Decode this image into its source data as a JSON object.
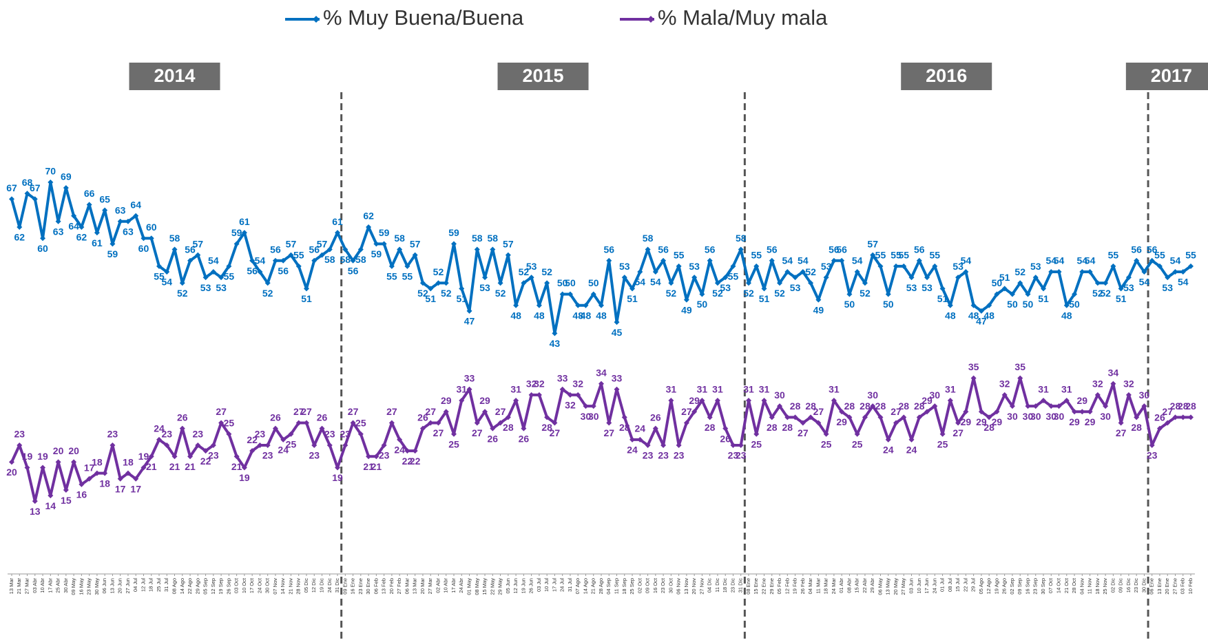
{
  "chart_data": {
    "type": "line",
    "groups": [
      {
        "name": "2014",
        "categories": [
          "13 Mar",
          "21 Mar",
          "27 Mar",
          "03 Abr",
          "10 Abr",
          "17 Abr",
          "25 Abr",
          "30 Abr",
          "09 May",
          "16 May",
          "23 May",
          "30 May",
          "06 Jun",
          "13 Jun",
          "20 Jun",
          "27 Jun",
          "04 Jul",
          "12 Jul",
          "18 Jul",
          "25 Jul",
          "31 Jul",
          "08 Ago",
          "14 Ago",
          "22 Ago",
          "29 Ago",
          "05 Sep",
          "12 Sep",
          "19 Sep",
          "26 Sep",
          "03 Oct",
          "10 Oct",
          "17 Oct",
          "24 Oct",
          "30 Oct",
          "07 Nov",
          "14 Nov",
          "21 Nov",
          "28 Nov",
          "05 Dic",
          "12 Dic",
          "19 Dic",
          "24 Dic",
          "31 Dic"
        ]
      },
      {
        "name": "2015",
        "categories": [
          "09 Ene",
          "16 Ene",
          "23 Ene",
          "30 Ene",
          "06 Feb",
          "13 Feb",
          "20 Feb",
          "27 Feb",
          "06 Mar",
          "13 Mar",
          "20 Mar",
          "27 Mar",
          "02 Abr",
          "10 Abr",
          "17 Abr",
          "24 Abr",
          "01 May",
          "08 May",
          "15 May",
          "22 May",
          "29 May",
          "05 Jun",
          "12 Jun",
          "19 Jun",
          "26 Jun",
          "03 Jul",
          "10 Jul",
          "17 Jul",
          "24 Jul",
          "31 Jul",
          "07 Ago",
          "14 Ago",
          "21 Ago",
          "28 Ago",
          "04 Sep",
          "11 Sep",
          "18 Sep",
          "25 Sep",
          "02 Oct",
          "09 Oct",
          "16 Oct",
          "23 Oct",
          "30 Oct",
          "06 Nov",
          "13 Nov",
          "20 Nov",
          "27 Nov",
          "04 Dic",
          "11 Dic",
          "18 Dic",
          "23 Dic",
          "31 Dic"
        ]
      },
      {
        "name": "2016",
        "categories": [
          "08 Ene",
          "15 Ene",
          "22 Ene",
          "29 Ene",
          "05 Feb",
          "12 Feb",
          "19 Feb",
          "26 Feb",
          "04 Mar",
          "11 Mar",
          "18 Mar",
          "24 Mar",
          "01 Abr",
          "08 Abr",
          "15 Abr",
          "22 Abr",
          "29 Abr",
          "06 May",
          "13 May",
          "20 May",
          "27 May",
          "03 Jun",
          "10 Jun",
          "17 Jun",
          "24 Jun",
          "01 Jul",
          "08 Jul",
          "15 Jul",
          "22 Jul",
          "29 Jul",
          "05 Ago",
          "12 Ago",
          "19 Ago",
          "26 Ago",
          "02 Sep",
          "09 Sep",
          "16 Sep",
          "23 Sep",
          "30 Sep",
          "07 Oct",
          "14 Oct",
          "21 Oct",
          "28 Oct",
          "04 Nov",
          "11 Nov",
          "18 Nov",
          "25 Nov",
          "02 Dic",
          "09 Dic",
          "16 Dic",
          "23 Dic",
          "30 Dic"
        ]
      },
      {
        "name": "2017",
        "categories": [
          "06 Ene",
          "13 Ene",
          "20 Ene",
          "27 Ene",
          "03 Feb",
          "10 Feb"
        ]
      }
    ],
    "series": [
      {
        "name": "% Muy Buena/Buena",
        "color": "#0070C0",
        "values": [
          67,
          62,
          68,
          67,
          60,
          70,
          63,
          69,
          64,
          62,
          66,
          61,
          65,
          59,
          63,
          63,
          64,
          60,
          60,
          55,
          54,
          58,
          52,
          56,
          57,
          53,
          54,
          53,
          55,
          59,
          61,
          56,
          54,
          52,
          56,
          56,
          57,
          55,
          51,
          56,
          57,
          58,
          61,
          58,
          56,
          58,
          62,
          59,
          59,
          55,
          58,
          55,
          57,
          52,
          51,
          52,
          52,
          59,
          51,
          47,
          58,
          53,
          58,
          52,
          57,
          48,
          52,
          53,
          48,
          52,
          43,
          50,
          50,
          48,
          48,
          50,
          48,
          56,
          45,
          53,
          51,
          54,
          58,
          54,
          56,
          52,
          55,
          49,
          53,
          50,
          56,
          52,
          53,
          55,
          58,
          52,
          55,
          51,
          56,
          52,
          54,
          53,
          54,
          52,
          49,
          53,
          56,
          56,
          50,
          54,
          52,
          57,
          55,
          50,
          55,
          55,
          53,
          56,
          53,
          55,
          51,
          48,
          53,
          54,
          48,
          47,
          48,
          50,
          51,
          50,
          52,
          50,
          53,
          51,
          54,
          54,
          48,
          50,
          54,
          54,
          52,
          52,
          55,
          51,
          53,
          56,
          54,
          56,
          55,
          53,
          54,
          54,
          55
        ]
      },
      {
        "name": "% Mala/Muy mala",
        "color": "#7030A0",
        "values": [
          20,
          23,
          19,
          13,
          19,
          14,
          20,
          15,
          20,
          16,
          17,
          18,
          18,
          23,
          17,
          18,
          17,
          19,
          21,
          24,
          23,
          21,
          26,
          21,
          23,
          22,
          23,
          27,
          25,
          21,
          19,
          22,
          23,
          23,
          26,
          24,
          25,
          27,
          27,
          23,
          26,
          23,
          19,
          23,
          27,
          25,
          21,
          21,
          23,
          27,
          24,
          22,
          22,
          26,
          27,
          27,
          29,
          25,
          31,
          33,
          27,
          29,
          26,
          27,
          28,
          31,
          26,
          32,
          32,
          28,
          27,
          33,
          32,
          32,
          30,
          30,
          34,
          27,
          33,
          28,
          24,
          24,
          23,
          26,
          23,
          31,
          23,
          27,
          29,
          31,
          28,
          31,
          26,
          23,
          23,
          31,
          25,
          31,
          28,
          30,
          28,
          28,
          27,
          28,
          27,
          25,
          31,
          29,
          28,
          25,
          28,
          30,
          28,
          24,
          27,
          28,
          24,
          28,
          29,
          30,
          25,
          31,
          27,
          29,
          35,
          29,
          28,
          29,
          32,
          30,
          35,
          30,
          30,
          31,
          30,
          30,
          31,
          29,
          29,
          29,
          32,
          30,
          34,
          27,
          32,
          28,
          30,
          23,
          26,
          27,
          28,
          28,
          28
        ]
      }
    ],
    "ylim": [
      0,
      100
    ],
    "grid": false
  }
}
